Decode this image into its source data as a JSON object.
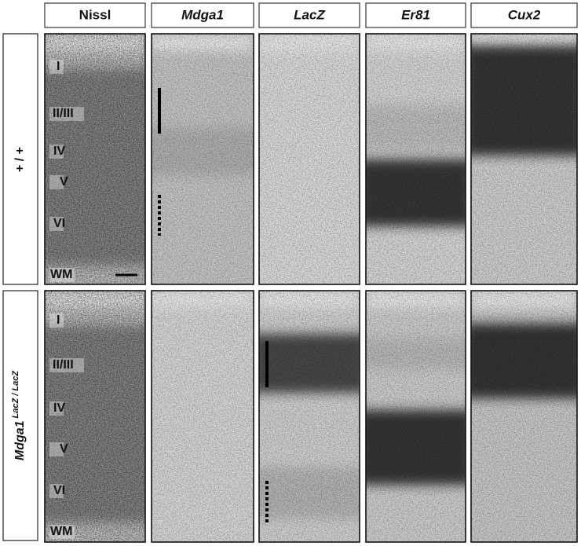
{
  "columns": [
    "Nissl",
    "Mdga1",
    "LacZ",
    "Er81",
    "Cux2"
  ],
  "rows": [
    {
      "genotype": "+ / +"
    },
    {
      "genotype": "Mdga1",
      "superscript": "LacZ / LacZ"
    }
  ],
  "layers": [
    "I",
    "II/III",
    "IV",
    "V",
    "VI",
    "WM"
  ]
}
